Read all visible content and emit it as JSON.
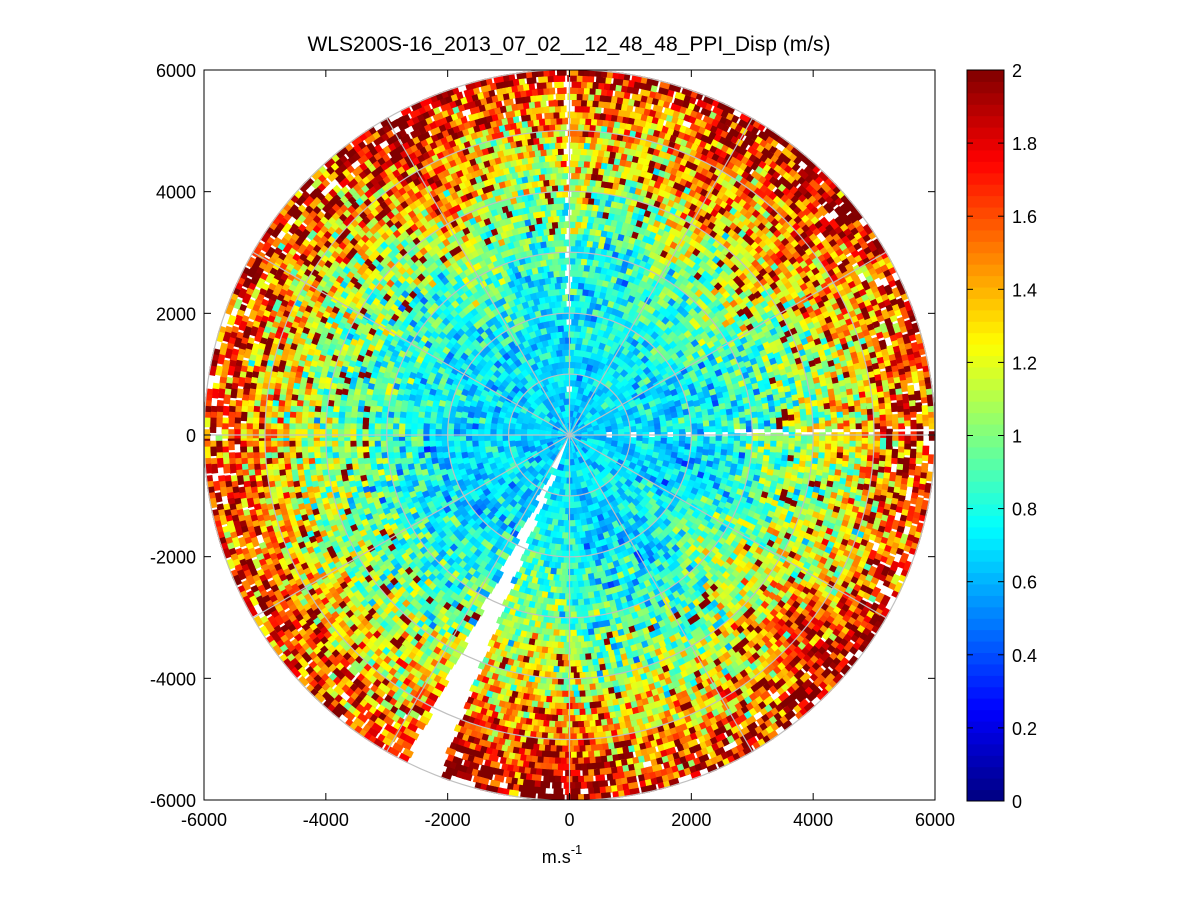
{
  "chart_data": {
    "type": "heatmap",
    "subtype": "polar-ppi",
    "title": "WLS200S-16_2013_07_02__12_48_48_PPI_Disp (m/s)",
    "xlabel": "m.s",
    "xlabel_superscript": "-1",
    "ylabel": "",
    "xlim": [
      -6000,
      6000
    ],
    "ylim": [
      -6000,
      6000
    ],
    "xticks": [
      -6000,
      -4000,
      -2000,
      0,
      2000,
      4000,
      6000
    ],
    "yticks": [
      -6000,
      -4000,
      -2000,
      0,
      2000,
      4000,
      6000
    ],
    "xtick_labels": [
      "-6000",
      "-4000",
      "-2000",
      "0",
      "2000",
      "4000",
      "6000"
    ],
    "ytick_labels": [
      "6000",
      "4000",
      "2000",
      "0",
      "-2000",
      "-4000",
      "-6000"
    ],
    "max_range": 6000,
    "range_rings": [
      1000,
      2000,
      3000,
      4000,
      5000,
      6000
    ],
    "spoke_angles_deg": [
      0,
      30,
      60,
      90,
      120,
      150,
      180,
      210,
      240,
      270,
      300,
      330
    ],
    "grid_color": "#c0c0c0",
    "colormap": "jet",
    "colorbar": {
      "min": 0,
      "max": 2,
      "ticks": [
        0,
        0.2,
        0.4,
        0.6,
        0.8,
        1,
        1.2,
        1.4,
        1.6,
        1.8,
        2
      ],
      "tick_labels": [
        "0",
        "0.2",
        "0.4",
        "0.6",
        "0.8",
        "1",
        "1.2",
        "1.4",
        "1.6",
        "1.8",
        "2"
      ],
      "placement": "right"
    },
    "dispersion_profile": [
      {
        "range": 0,
        "value": 0.65
      },
      {
        "range": 2000,
        "value": 0.7
      },
      {
        "range": 3000,
        "value": 0.85
      },
      {
        "range": 4000,
        "value": 1.05
      },
      {
        "range": 5000,
        "value": 1.35
      },
      {
        "range": 6000,
        "value": 1.7
      }
    ],
    "gap_sectors_deg": [
      {
        "from": 90.6,
        "to": 89.4
      },
      {
        "from": -117,
        "to": -111
      },
      {
        "from": 0,
        "to": 1
      }
    ],
    "high_dispersion_azimuth_deg": [
      -110,
      -95,
      40,
      60,
      120,
      -40
    ]
  }
}
